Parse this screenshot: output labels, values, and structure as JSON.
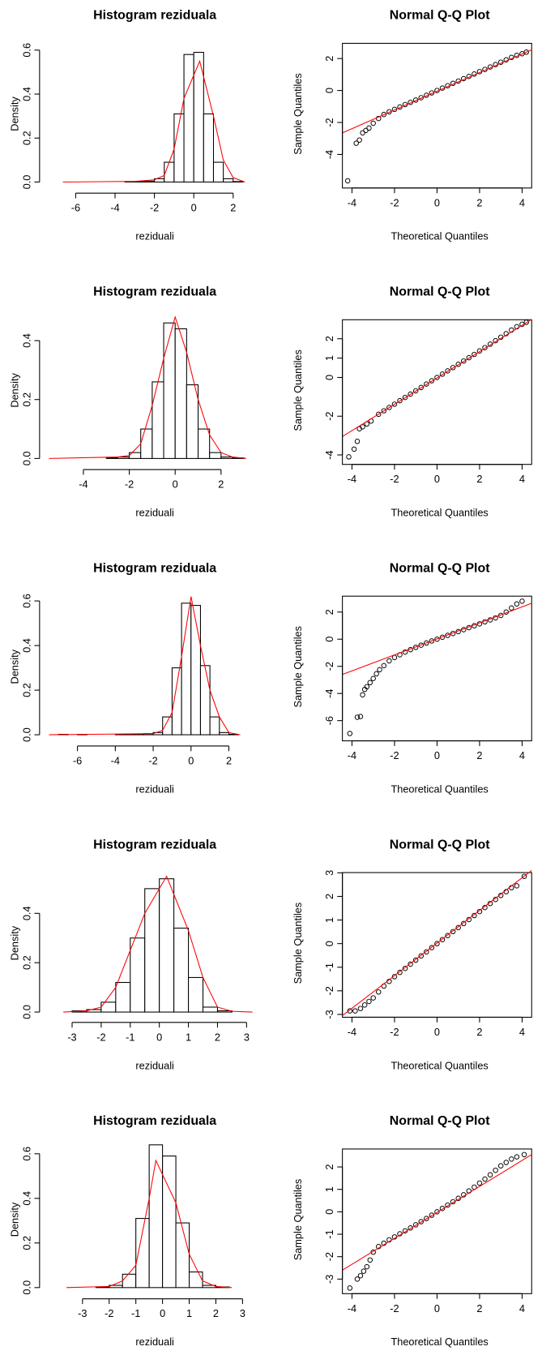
{
  "chart_data": [
    {
      "type": "histogram",
      "title": "Histogram reziduala",
      "x_label": "reziduali",
      "y_label": "Density",
      "bins": [
        -3.5,
        -3,
        -2.5,
        -2,
        -1.5,
        -1,
        -0.5,
        0,
        0.5,
        1,
        1.5,
        2,
        2.5
      ],
      "values": [
        0.002,
        0.002,
        0.004,
        0.015,
        0.09,
        0.31,
        0.58,
        0.59,
        0.31,
        0.09,
        0.015,
        0.002
      ],
      "color": "#ffffff",
      "density_line": {
        "x": [
          -6.65,
          -3,
          -2,
          -1.5,
          -1,
          -0.5,
          0.3,
          1,
          1.5,
          2,
          2.6
        ],
        "y": [
          0,
          0.003,
          0.01,
          0.03,
          0.15,
          0.38,
          0.55,
          0.3,
          0.1,
          0.02,
          0
        ],
        "color": "#ff0000"
      },
      "xlim": [
        -7.66,
        2.83
      ],
      "ylim": [
        -0.035,
        0.67
      ],
      "xticks": [
        -6,
        -4,
        -2,
        0,
        2
      ],
      "yticks": [
        {
          "value": 0,
          "label": "0.0"
        },
        0.2,
        0.4,
        0.6
      ]
    },
    {
      "type": "qq",
      "title": "Normal Q-Q Plot",
      "x_label": "Theoretical Quantiles",
      "y_label": "Sample Quantiles",
      "x": [
        -4.2,
        -3.8,
        -3.65,
        -3.5,
        -3.35,
        -3.2,
        -3,
        -2.75,
        -2.5,
        -2.25,
        -2,
        -1.75,
        -1.5,
        -1.25,
        -1,
        -0.75,
        -0.5,
        -0.25,
        0,
        0.25,
        0.5,
        0.75,
        1,
        1.25,
        1.5,
        1.75,
        2,
        2.25,
        2.5,
        2.75,
        3,
        3.25,
        3.5,
        3.75,
        4,
        4.2
      ],
      "y": [
        -5.65,
        -3.3,
        -3.1,
        -2.65,
        -2.5,
        -2.35,
        -2.05,
        -1.75,
        -1.5,
        -1.33,
        -1.18,
        -1.03,
        -0.88,
        -0.74,
        -0.6,
        -0.45,
        -0.3,
        -0.15,
        0,
        0.15,
        0.3,
        0.45,
        0.59,
        0.74,
        0.88,
        1.03,
        1.18,
        1.32,
        1.47,
        1.62,
        1.77,
        1.92,
        2.07,
        2.2,
        2.3,
        2.4
      ],
      "color": "#000000",
      "line": {
        "x": [
          -4.45,
          4.45
        ],
        "y": [
          -2.65,
          2.55
        ],
        "color": "#ff0000"
      },
      "xlim": [
        -4.45,
        4.45
      ],
      "ylim": [
        -6.1,
        2.95
      ],
      "xticks": [
        -4,
        -2,
        0,
        2,
        4
      ],
      "yticks": [
        -4,
        -2,
        0,
        2
      ]
    },
    {
      "type": "histogram",
      "title": "Histogram reziduala",
      "x_label": "reziduali",
      "y_label": "Density",
      "bins": [
        -3,
        -2.5,
        -2,
        -1.5,
        -1,
        -0.5,
        0,
        0.5,
        1,
        1.5,
        2,
        2.5,
        3
      ],
      "values": [
        0.003,
        0.005,
        0.02,
        0.1,
        0.26,
        0.46,
        0.44,
        0.25,
        0.1,
        0.02,
        0.005,
        0.002
      ],
      "color": "#ffffff",
      "density_line": {
        "x": [
          -5.5,
          -2.5,
          -2,
          -1.5,
          -1,
          -0.5,
          0,
          0.5,
          1,
          1.5,
          2,
          2.5,
          3.1
        ],
        "y": [
          0,
          0.005,
          0.01,
          0.05,
          0.18,
          0.34,
          0.48,
          0.36,
          0.2,
          0.08,
          0.02,
          0.005,
          0
        ],
        "color": "#ff0000"
      },
      "xlim": [
        -5.76,
        3.24
      ],
      "ylim": [
        -0.026,
        0.5
      ],
      "xticks": [
        -4,
        -2,
        0,
        2
      ],
      "yticks": [
        {
          "value": 0,
          "label": "0.0"
        },
        0.2,
        0.4
      ]
    },
    {
      "type": "qq",
      "title": "Normal Q-Q Plot",
      "x_label": "Theoretical Quantiles",
      "y_label": "Sample Quantiles",
      "x": [
        -4.15,
        -3.9,
        -3.75,
        -3.65,
        -3.5,
        -3.3,
        -3.1,
        -2.75,
        -2.5,
        -2.25,
        -2,
        -1.75,
        -1.5,
        -1.25,
        -1,
        -0.75,
        -0.5,
        -0.25,
        0,
        0.25,
        0.5,
        0.75,
        1,
        1.25,
        1.5,
        1.75,
        2,
        2.25,
        2.5,
        2.75,
        3,
        3.25,
        3.5,
        3.75,
        4,
        4.2
      ],
      "y": [
        -4.1,
        -3.7,
        -3.3,
        -2.65,
        -2.55,
        -2.4,
        -2.25,
        -1.9,
        -1.72,
        -1.55,
        -1.38,
        -1.2,
        -1.03,
        -0.86,
        -0.69,
        -0.52,
        -0.34,
        -0.17,
        0,
        0.17,
        0.34,
        0.51,
        0.68,
        0.85,
        1.02,
        1.19,
        1.37,
        1.54,
        1.72,
        1.9,
        2.08,
        2.26,
        2.45,
        2.62,
        2.75,
        2.85
      ],
      "color": "#000000",
      "line": {
        "x": [
          -4.45,
          4.45
        ],
        "y": [
          -3.05,
          3.0
        ],
        "color": "#ff0000"
      },
      "xlim": [
        -4.45,
        4.45
      ],
      "ylim": [
        -4.49,
        2.98
      ],
      "xticks": [
        -4,
        -2,
        0,
        2,
        4
      ],
      "yticks": [
        -4,
        -2,
        0,
        1,
        2
      ]
    },
    {
      "type": "histogram",
      "title": "Histogram reziduala",
      "x_label": "reziduali",
      "y_label": "Density",
      "bins": [
        -7,
        -6.5,
        -6,
        -5.5,
        -5,
        -4.5,
        -4,
        -3.5,
        -3,
        -2.5,
        -2,
        -1.5,
        -1,
        -0.5,
        0,
        0.5,
        1,
        1.5,
        2,
        2.5
      ],
      "values": [
        0.002,
        0,
        0.002,
        0,
        0,
        0,
        0.002,
        0.002,
        0.003,
        0.005,
        0.01,
        0.08,
        0.3,
        0.59,
        0.58,
        0.31,
        0.08,
        0.01,
        0.002
      ],
      "color": "#ffffff",
      "density_line": {
        "x": [
          -7.5,
          -2,
          -1.5,
          -1,
          -0.5,
          0,
          0.5,
          1,
          1.5,
          2,
          2.6
        ],
        "y": [
          0,
          0.005,
          0.02,
          0.1,
          0.35,
          0.62,
          0.4,
          0.2,
          0.08,
          0.01,
          0
        ],
        "color": "#ff0000"
      },
      "xlim": [
        -7.82,
        3.09
      ],
      "ylim": [
        -0.035,
        0.66
      ],
      "xticks": [
        -6,
        -4,
        -2,
        0,
        2
      ],
      "yticks": [
        {
          "value": 0,
          "label": "0.0"
        },
        0.2,
        0.4,
        0.6
      ]
    },
    {
      "type": "qq",
      "title": "Normal Q-Q Plot",
      "x_label": "Theoretical Quantiles",
      "y_label": "Sample Quantiles",
      "x": [
        -4.1,
        -3.75,
        -3.6,
        -3.5,
        -3.4,
        -3.3,
        -3.15,
        -3,
        -2.85,
        -2.7,
        -2.5,
        -2.25,
        -2,
        -1.75,
        -1.5,
        -1.25,
        -1,
        -0.75,
        -0.5,
        -0.25,
        0,
        0.25,
        0.5,
        0.75,
        1,
        1.25,
        1.5,
        1.75,
        2,
        2.25,
        2.5,
        2.75,
        3,
        3.25,
        3.5,
        3.75,
        4
      ],
      "y": [
        -6.95,
        -5.75,
        -5.7,
        -4.1,
        -3.7,
        -3.5,
        -3.2,
        -2.9,
        -2.55,
        -2.25,
        -1.95,
        -1.6,
        -1.35,
        -1.15,
        -0.95,
        -0.77,
        -0.6,
        -0.44,
        -0.28,
        -0.13,
        0,
        0.14,
        0.28,
        0.42,
        0.56,
        0.7,
        0.85,
        0.99,
        1.13,
        1.28,
        1.42,
        1.57,
        1.75,
        2.0,
        2.3,
        2.6,
        2.8
      ],
      "color": "#000000",
      "line": {
        "x": [
          -4.45,
          4.45
        ],
        "y": [
          -2.6,
          2.65
        ],
        "color": "#ff0000"
      },
      "xlim": [
        -4.45,
        4.45
      ],
      "ylim": [
        -7.49,
        3.17
      ],
      "xticks": [
        -4,
        -2,
        0,
        2,
        4
      ],
      "yticks": [
        -6,
        -4,
        -2,
        0,
        2
      ]
    },
    {
      "type": "histogram",
      "title": "Histogram reziduala",
      "x_label": "reziduali",
      "y_label": "Density",
      "bins": [
        -3,
        -2.5,
        -2,
        -1.5,
        -1,
        -0.5,
        0,
        0.5,
        1,
        1.5,
        2,
        2.5
      ],
      "values": [
        0.005,
        0.01,
        0.04,
        0.12,
        0.3,
        0.5,
        0.54,
        0.34,
        0.14,
        0.02,
        0.005
      ],
      "color": "#ffffff",
      "density_line": {
        "x": [
          -3.3,
          -2.5,
          -2,
          -1.5,
          -1,
          -0.5,
          0.25,
          1,
          1.5,
          2,
          2.5,
          3.2
        ],
        "y": [
          0,
          0.005,
          0.02,
          0.1,
          0.25,
          0.4,
          0.55,
          0.33,
          0.14,
          0.02,
          0.003,
          0
        ],
        "color": "#ff0000"
      },
      "xlim": [
        -4,
        3.1
      ],
      "ylim": [
        -0.028,
        0.6
      ],
      "xticks": [
        -3,
        -2,
        -1,
        0,
        1,
        2,
        3
      ],
      "yticks": [
        {
          "value": 0,
          "label": "0.0"
        },
        0.2,
        0.4
      ]
    },
    {
      "type": "qq",
      "title": "Normal Q-Q Plot",
      "x_label": "Theoretical Quantiles",
      "y_label": "Sample Quantiles",
      "x": [
        -4.1,
        -3.85,
        -3.6,
        -3.4,
        -3.2,
        -3,
        -2.75,
        -2.5,
        -2.25,
        -2,
        -1.75,
        -1.5,
        -1.25,
        -1,
        -0.75,
        -0.5,
        -0.25,
        0,
        0.25,
        0.5,
        0.75,
        1,
        1.25,
        1.5,
        1.75,
        2,
        2.25,
        2.5,
        2.75,
        3,
        3.25,
        3.5,
        3.75,
        4.1
      ],
      "y": [
        -2.85,
        -2.85,
        -2.75,
        -2.6,
        -2.45,
        -2.3,
        -2.05,
        -1.8,
        -1.6,
        -1.4,
        -1.22,
        -1.05,
        -0.87,
        -0.7,
        -0.52,
        -0.35,
        -0.17,
        0,
        0.17,
        0.34,
        0.51,
        0.68,
        0.85,
        1.02,
        1.19,
        1.36,
        1.53,
        1.7,
        1.87,
        2.04,
        2.2,
        2.37,
        2.45,
        2.85
      ],
      "color": "#000000",
      "line": {
        "x": [
          -4.45,
          4.45
        ],
        "y": [
          -3.05,
          3.1
        ],
        "color": "#ff0000"
      },
      "xlim": [
        -4.45,
        4.45
      ],
      "ylim": [
        -3.12,
        3.01
      ],
      "xticks": [
        -4,
        -2,
        0,
        2,
        4
      ],
      "yticks": [
        -3,
        -2,
        -1,
        0,
        1,
        2,
        3
      ]
    },
    {
      "type": "histogram",
      "title": "Histogram reziduala",
      "x_label": "reziduali",
      "y_label": "Density",
      "bins": [
        -2.5,
        -2,
        -1.5,
        -1,
        -0.5,
        0,
        0.5,
        1,
        1.5,
        2,
        2.5
      ],
      "values": [
        0.003,
        0.01,
        0.06,
        0.31,
        0.64,
        0.59,
        0.29,
        0.07,
        0.01,
        0.003
      ],
      "color": "#ffffff",
      "density_line": {
        "x": [
          -3.6,
          -2,
          -1.5,
          -1,
          -0.5,
          -0.25,
          0.5,
          1,
          1.5,
          2,
          2.6
        ],
        "y": [
          0,
          0.005,
          0.03,
          0.1,
          0.4,
          0.57,
          0.38,
          0.15,
          0.03,
          0.005,
          0
        ],
        "color": "#ff0000"
      },
      "xlim": [
        -4.48,
        3.26
      ],
      "ylim": [
        -0.035,
        0.66
      ],
      "xticks": [
        -3,
        -2,
        -1,
        0,
        1,
        2,
        3
      ],
      "yticks": [
        {
          "value": 0,
          "label": "0.0"
        },
        0.2,
        0.4,
        0.6
      ]
    },
    {
      "type": "qq",
      "title": "Normal Q-Q Plot",
      "x_label": "Theoretical Quantiles",
      "y_label": "Sample Quantiles",
      "x": [
        -4.1,
        -3.75,
        -3.6,
        -3.45,
        -3.3,
        -3.15,
        -3,
        -2.75,
        -2.5,
        -2.25,
        -2,
        -1.75,
        -1.5,
        -1.25,
        -1,
        -0.75,
        -0.5,
        -0.25,
        0,
        0.25,
        0.5,
        0.75,
        1,
        1.25,
        1.5,
        1.75,
        2,
        2.25,
        2.5,
        2.75,
        3,
        3.25,
        3.5,
        3.75,
        4.1
      ],
      "y": [
        -3.4,
        -3.0,
        -2.85,
        -2.65,
        -2.45,
        -2.15,
        -1.8,
        -1.55,
        -1.4,
        -1.25,
        -1.12,
        -0.98,
        -0.85,
        -0.72,
        -0.58,
        -0.44,
        -0.3,
        -0.15,
        0,
        0.15,
        0.3,
        0.45,
        0.6,
        0.76,
        0.93,
        1.1,
        1.28,
        1.46,
        1.65,
        1.85,
        2.05,
        2.2,
        2.35,
        2.45,
        2.55
      ],
      "color": "#000000",
      "line": {
        "x": [
          -4.45,
          4.45
        ],
        "y": [
          -2.6,
          2.55
        ],
        "color": "#ff0000"
      },
      "xlim": [
        -4.45,
        4.45
      ],
      "ylim": [
        -3.65,
        2.8
      ],
      "xticks": [
        -4,
        -2,
        0,
        2,
        4
      ],
      "yticks": [
        -3,
        -2,
        -1,
        0,
        1,
        2
      ]
    }
  ]
}
